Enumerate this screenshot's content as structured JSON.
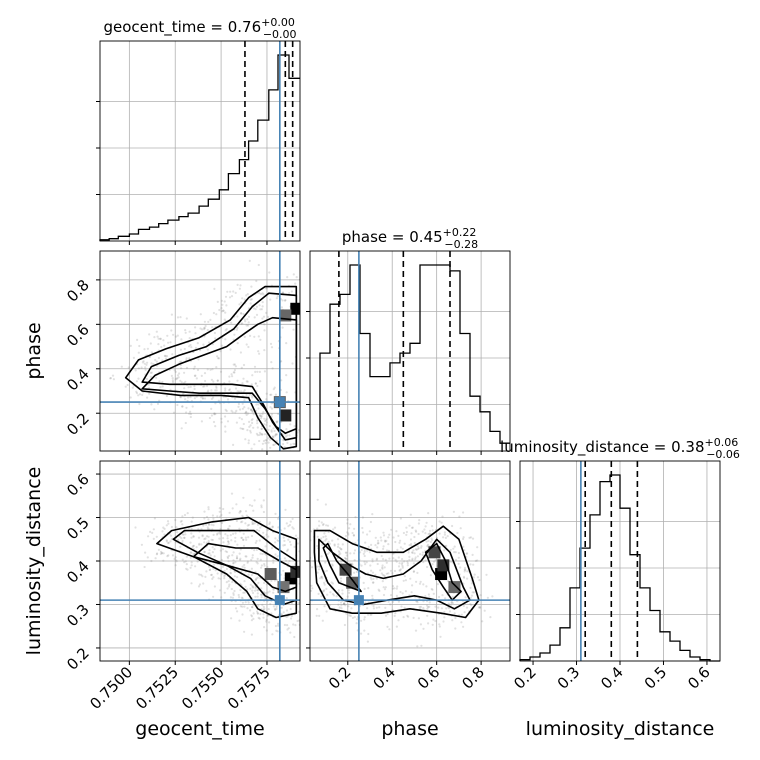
{
  "chart_data": {
    "type": "corner",
    "grid": true,
    "truth_color": "#4682b4",
    "parameters": [
      {
        "name": "geocent_time",
        "axis_label": "geocent_time",
        "range": [
          0.7484,
          0.7593
        ],
        "ticks": [
          0.75,
          0.7525,
          0.755,
          0.7575
        ],
        "tick_labels": [
          "0.7500",
          "0.7525",
          "0.7550",
          "0.7575"
        ],
        "truth": 0.7582,
        "median": 0.7585,
        "quantiles": [
          0.7563,
          0.7585,
          0.7589
        ],
        "title": {
          "text": "geocent_time = 0.76",
          "plus": "+0.00",
          "minus": "−0.00"
        },
        "histogram": {
          "bin_edges": [
            0.7484,
            0.7489,
            0.7494,
            0.75,
            0.7505,
            0.7511,
            0.7516,
            0.7521,
            0.7527,
            0.7532,
            0.7538,
            0.7543,
            0.7549,
            0.7554,
            0.756,
            0.7565,
            0.757,
            0.7576,
            0.7581,
            0.7587,
            0.7593
          ],
          "counts": [
            0.5,
            1.0,
            2.0,
            3.0,
            5.0,
            6.0,
            7.5,
            9.0,
            10.5,
            12.0,
            15.0,
            18.0,
            22.0,
            29.0,
            35.0,
            43.0,
            52.0,
            65.0,
            80.0,
            70.0
          ]
        }
      },
      {
        "name": "phase",
        "axis_label": "phase",
        "range": [
          0.03,
          0.93
        ],
        "ticks": [
          0.2,
          0.4,
          0.6,
          0.8
        ],
        "tick_labels": [
          "0.2",
          "0.4",
          "0.6",
          "0.8"
        ],
        "truth": 0.25,
        "median": 0.45,
        "quantiles": [
          0.16,
          0.45,
          0.66
        ],
        "title": {
          "text": "phase = 0.45",
          "plus": "+0.22",
          "minus": "−0.28"
        },
        "histogram": {
          "bin_edges": [
            0.03,
            0.075,
            0.12,
            0.165,
            0.21,
            0.255,
            0.3,
            0.345,
            0.39,
            0.435,
            0.48,
            0.525,
            0.57,
            0.615,
            0.66,
            0.705,
            0.75,
            0.795,
            0.84,
            0.885,
            0.93
          ],
          "counts": [
            6,
            50,
            75,
            80,
            95,
            60,
            38,
            38,
            45,
            50,
            55,
            95,
            95,
            95,
            92,
            60,
            28,
            20,
            10,
            4
          ]
        }
      },
      {
        "name": "luminosity_distance",
        "axis_label": "luminosity_distance",
        "range": [
          0.17,
          0.63
        ],
        "ticks": [
          0.2,
          0.3,
          0.4,
          0.5,
          0.6
        ],
        "tick_labels": [
          "0.2",
          "0.3",
          "0.4",
          "0.5",
          "0.6"
        ],
        "truth": 0.31,
        "median": 0.38,
        "quantiles": [
          0.32,
          0.38,
          0.44
        ],
        "title": {
          "text": "luminosity_distance = 0.38",
          "plus": "+0.06",
          "minus": "−0.06"
        },
        "histogram": {
          "bin_edges": [
            0.17,
            0.193,
            0.216,
            0.239,
            0.262,
            0.285,
            0.308,
            0.331,
            0.354,
            0.377,
            0.4,
            0.423,
            0.446,
            0.469,
            0.492,
            0.515,
            0.538,
            0.561,
            0.584,
            0.607,
            0.63
          ],
          "counts": [
            1,
            3,
            6,
            12,
            25,
            55,
            85,
            110,
            135,
            140,
            115,
            80,
            55,
            38,
            22,
            15,
            8,
            3,
            1,
            0
          ]
        }
      }
    ],
    "panels_2d": [
      {
        "x_param": "geocent_time",
        "y_param": "phase",
        "contours": [
          [
            [
              0.7591,
              0.62
            ],
            [
              0.7578,
              0.63
            ],
            [
              0.757,
              0.6
            ],
            [
              0.7563,
              0.56
            ],
            [
              0.7553,
              0.5
            ],
            [
              0.754,
              0.46
            ],
            [
              0.7527,
              0.42
            ],
            [
              0.7514,
              0.37
            ],
            [
              0.7507,
              0.31
            ],
            [
              0.7522,
              0.3
            ],
            [
              0.7538,
              0.29
            ],
            [
              0.7554,
              0.29
            ],
            [
              0.7567,
              0.29
            ],
            [
              0.7574,
              0.22
            ],
            [
              0.758,
              0.14
            ],
            [
              0.7585,
              0.11
            ],
            [
              0.7591,
              0.13
            ]
          ],
          [
            [
              0.7591,
              0.73
            ],
            [
              0.7576,
              0.74
            ],
            [
              0.7567,
              0.68
            ],
            [
              0.7557,
              0.58
            ],
            [
              0.7542,
              0.5
            ],
            [
              0.7527,
              0.46
            ],
            [
              0.7512,
              0.41
            ],
            [
              0.7507,
              0.34
            ],
            [
              0.7522,
              0.33
            ],
            [
              0.754,
              0.33
            ],
            [
              0.7556,
              0.33
            ],
            [
              0.7567,
              0.32
            ],
            [
              0.7573,
              0.24
            ],
            [
              0.7578,
              0.16
            ],
            [
              0.7585,
              0.08
            ],
            [
              0.7591,
              0.09
            ]
          ],
          [
            [
              0.7591,
              0.77
            ],
            [
              0.7574,
              0.77
            ],
            [
              0.7565,
              0.72
            ],
            [
              0.7555,
              0.62
            ],
            [
              0.7538,
              0.54
            ],
            [
              0.752,
              0.49
            ],
            [
              0.7505,
              0.44
            ],
            [
              0.7498,
              0.36
            ],
            [
              0.7507,
              0.3
            ],
            [
              0.7528,
              0.28
            ],
            [
              0.755,
              0.28
            ],
            [
              0.7565,
              0.27
            ],
            [
              0.757,
              0.18
            ],
            [
              0.7577,
              0.09
            ],
            [
              0.7584,
              0.04
            ],
            [
              0.7591,
              0.05
            ]
          ]
        ],
        "density_peaks": [
          [
            0.7591,
            0.67,
            1.0
          ],
          [
            0.7585,
            0.64,
            0.55
          ],
          [
            0.7585,
            0.19,
            0.85
          ],
          [
            0.7582,
            0.25,
            0.6
          ]
        ]
      },
      {
        "x_param": "geocent_time",
        "y_param": "luminosity_distance",
        "contours": [
          [
            [
              0.7591,
              0.38
            ],
            [
              0.7582,
              0.4
            ],
            [
              0.757,
              0.43
            ],
            [
              0.7558,
              0.43
            ],
            [
              0.7543,
              0.44
            ],
            [
              0.7535,
              0.41
            ],
            [
              0.7553,
              0.39
            ],
            [
              0.757,
              0.37
            ],
            [
              0.7578,
              0.34
            ],
            [
              0.7585,
              0.33
            ],
            [
              0.7591,
              0.34
            ]
          ],
          [
            [
              0.7591,
              0.4
            ],
            [
              0.758,
              0.43
            ],
            [
              0.7568,
              0.47
            ],
            [
              0.755,
              0.47
            ],
            [
              0.753,
              0.47
            ],
            [
              0.7524,
              0.45
            ],
            [
              0.7537,
              0.42
            ],
            [
              0.7553,
              0.39
            ],
            [
              0.7566,
              0.36
            ],
            [
              0.7574,
              0.32
            ],
            [
              0.7584,
              0.3
            ],
            [
              0.7591,
              0.31
            ]
          ],
          [
            [
              0.7591,
              0.45
            ],
            [
              0.7578,
              0.47
            ],
            [
              0.7565,
              0.5
            ],
            [
              0.7545,
              0.49
            ],
            [
              0.7523,
              0.47
            ],
            [
              0.7515,
              0.44
            ],
            [
              0.7535,
              0.41
            ],
            [
              0.7553,
              0.37
            ],
            [
              0.7564,
              0.33
            ],
            [
              0.757,
              0.29
            ],
            [
              0.758,
              0.27
            ],
            [
              0.7591,
              0.28
            ]
          ]
        ],
        "density_peaks": [
          [
            0.7588,
            0.36,
            1.0
          ],
          [
            0.7591,
            0.375,
            0.8
          ],
          [
            0.7577,
            0.37,
            0.6
          ],
          [
            0.7584,
            0.34,
            0.5
          ]
        ]
      },
      {
        "x_param": "phase",
        "y_param": "luminosity_distance",
        "contours": [
          [
            [
              0.09,
              0.43
            ],
            [
              0.12,
              0.39
            ],
            [
              0.16,
              0.35
            ],
            [
              0.21,
              0.34
            ],
            [
              0.26,
              0.33
            ],
            [
              0.2,
              0.37
            ],
            [
              0.15,
              0.4
            ],
            [
              0.11,
              0.44
            ]
          ],
          [
            [
              0.55,
              0.42
            ],
            [
              0.6,
              0.44
            ],
            [
              0.64,
              0.4
            ],
            [
              0.67,
              0.35
            ],
            [
              0.71,
              0.33
            ],
            [
              0.67,
              0.31
            ],
            [
              0.63,
              0.34
            ],
            [
              0.58,
              0.38
            ]
          ],
          [
            [
              0.07,
              0.45
            ],
            [
              0.13,
              0.42
            ],
            [
              0.21,
              0.39
            ],
            [
              0.28,
              0.37
            ],
            [
              0.36,
              0.36
            ],
            [
              0.45,
              0.37
            ],
            [
              0.53,
              0.4
            ],
            [
              0.6,
              0.45
            ],
            [
              0.66,
              0.42
            ],
            [
              0.72,
              0.34
            ],
            [
              0.75,
              0.31
            ],
            [
              0.68,
              0.29
            ],
            [
              0.6,
              0.31
            ],
            [
              0.5,
              0.32
            ],
            [
              0.38,
              0.31
            ],
            [
              0.27,
              0.3
            ],
            [
              0.18,
              0.31
            ],
            [
              0.11,
              0.35
            ],
            [
              0.07,
              0.4
            ]
          ],
          [
            [
              0.05,
              0.47
            ],
            [
              0.12,
              0.47
            ],
            [
              0.22,
              0.44
            ],
            [
              0.33,
              0.42
            ],
            [
              0.45,
              0.42
            ],
            [
              0.55,
              0.45
            ],
            [
              0.63,
              0.48
            ],
            [
              0.7,
              0.45
            ],
            [
              0.76,
              0.36
            ],
            [
              0.79,
              0.31
            ],
            [
              0.73,
              0.27
            ],
            [
              0.62,
              0.28
            ],
            [
              0.48,
              0.29
            ],
            [
              0.35,
              0.28
            ],
            [
              0.22,
              0.28
            ],
            [
              0.12,
              0.29
            ],
            [
              0.06,
              0.35
            ],
            [
              0.05,
              0.42
            ]
          ]
        ],
        "density_peaks": [
          [
            0.62,
            0.37,
            1.0
          ],
          [
            0.63,
            0.39,
            0.8
          ],
          [
            0.59,
            0.42,
            0.7
          ],
          [
            0.19,
            0.38,
            0.7
          ],
          [
            0.22,
            0.35,
            0.6
          ],
          [
            0.68,
            0.34,
            0.55
          ]
        ]
      }
    ]
  }
}
